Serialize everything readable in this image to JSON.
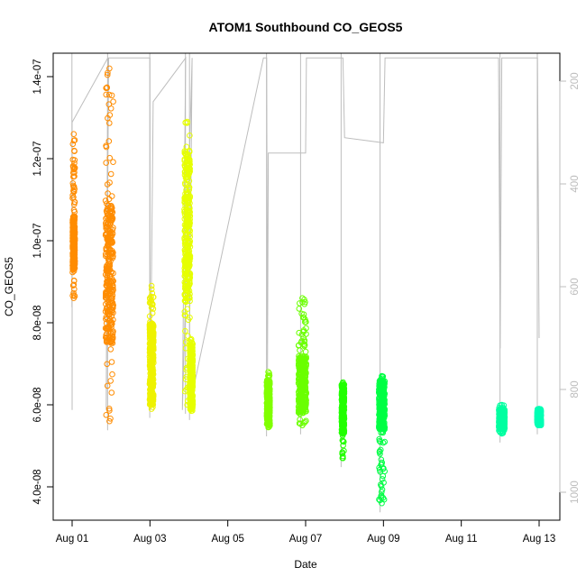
{
  "chart_data": {
    "type": "scatter",
    "title": "ATOM1 Southbound CO_GEOS5",
    "xlabel": "Date",
    "ylabel": "CO_GEOS5",
    "xlim": [
      "2016-08-01",
      "2016-08-13"
    ],
    "ylim": [
      3.3e-08,
      1.46e-07
    ],
    "x_ticks": [
      {
        "value": "2016-08-01",
        "label": "Aug 01"
      },
      {
        "value": "2016-08-03",
        "label": "Aug 03"
      },
      {
        "value": "2016-08-05",
        "label": "Aug 05"
      },
      {
        "value": "2016-08-07",
        "label": "Aug 07"
      },
      {
        "value": "2016-08-09",
        "label": "Aug 09"
      },
      {
        "value": "2016-08-11",
        "label": "Aug 11"
      },
      {
        "value": "2016-08-13",
        "label": "Aug 13"
      }
    ],
    "y_ticks": [
      {
        "value": 4e-08,
        "label": "4.0e-08"
      },
      {
        "value": 6e-08,
        "label": "6.0e-08"
      },
      {
        "value": 8e-08,
        "label": "8.0e-08"
      },
      {
        "value": 1e-07,
        "label": "1.0e-07"
      },
      {
        "value": 1.2e-07,
        "label": "1.2e-07"
      },
      {
        "value": 1.4e-07,
        "label": "1.4e-07"
      }
    ],
    "right_axis": {
      "color": "#bdbdbd",
      "inverted": true,
      "lim": [
        1050,
        155
      ],
      "ticks": [
        {
          "value": 200,
          "label": "200"
        },
        {
          "value": 400,
          "label": "400"
        },
        {
          "value": 600,
          "label": "600"
        },
        {
          "value": 800,
          "label": "800"
        },
        {
          "value": 1000,
          "label": "1000"
        }
      ]
    },
    "clusters": [
      {
        "x": "2016-08-01 01:00",
        "ymin": 8.6e-08,
        "ymax": 1.26e-07,
        "dense_min": 9.3e-08,
        "dense_max": 1.06e-07,
        "color": "#ff8c00",
        "spread_h": 0.06
      },
      {
        "x": "2016-08-01 23:00",
        "ymin": 5.6e-08,
        "ymax": 1.42e-07,
        "dense_min": 7.5e-08,
        "dense_max": 1.09e-07,
        "color": "#ff8c00",
        "spread_h": 0.2
      },
      {
        "x": "2016-08-03 01:00",
        "ymin": 5.9e-08,
        "ymax": 8.9e-08,
        "dense_min": 6e-08,
        "dense_max": 8e-08,
        "color": "#eef200",
        "spread_h": 0.1
      },
      {
        "x": "2016-08-03 23:00",
        "ymin": 6e-08,
        "ymax": 1.29e-07,
        "dense_min": 8.5e-08,
        "dense_max": 1.22e-07,
        "color": "#e6ff00",
        "spread_h": 0.15
      },
      {
        "x": "2016-08-04 01:30",
        "ymin": 5.85e-08,
        "ymax": 7.6e-08,
        "dense_min": 5.9e-08,
        "dense_max": 7.5e-08,
        "color": "#e6ff00",
        "spread_h": 0.08
      },
      {
        "x": "2016-08-06 01:00",
        "ymin": 5.45e-08,
        "ymax": 6.8e-08,
        "dense_min": 5.5e-08,
        "dense_max": 6.6e-08,
        "color": "#80ff00",
        "spread_h": 0.08
      },
      {
        "x": "2016-08-06 22:00",
        "ymin": 5.5e-08,
        "ymax": 8.6e-08,
        "dense_min": 5.8e-08,
        "dense_max": 7.2e-08,
        "color": "#6aff00",
        "spread_h": 0.2
      },
      {
        "x": "2016-08-07 23:00",
        "ymin": 4.7e-08,
        "ymax": 6.55e-08,
        "dense_min": 5.3e-08,
        "dense_max": 6.5e-08,
        "color": "#22ff00",
        "spread_h": 0.07
      },
      {
        "x": "2016-08-08 23:00",
        "ymin": 3.6e-08,
        "ymax": 6.7e-08,
        "dense_min": 5.4e-08,
        "dense_max": 6.6e-08,
        "color": "#00ff44",
        "spread_h": 0.15
      },
      {
        "x": "2016-08-12 01:00",
        "ymin": 5.3e-08,
        "ymax": 6e-08,
        "dense_min": 5.4e-08,
        "dense_max": 5.9e-08,
        "color": "#00ffa0",
        "spread_h": 0.15
      },
      {
        "x": "2016-08-13 00:00",
        "ymin": 5.5e-08,
        "ymax": 5.9e-08,
        "dense_min": 5.5e-08,
        "dense_max": 5.9e-08,
        "color": "#00ffb4",
        "spread_h": 0.1
      }
    ],
    "altitude_trace": {
      "color": "#bdbdbd",
      "axis": "right",
      "points": [
        [
          "2016-08-01 00:00",
          840
        ],
        [
          "2016-08-01 00:01",
          280
        ],
        [
          "2016-08-01 22:00",
          155
        ],
        [
          "2016-08-01 21:00",
          840
        ],
        [
          "2016-08-01 22:30",
          155
        ],
        [
          "2016-08-02 02:00",
          155
        ],
        [
          "2016-08-02 22:00",
          155
        ],
        [
          "2016-08-03 00:00",
          155
        ],
        [
          "2016-08-03 00:10",
          840
        ],
        [
          "2016-08-03 02:00",
          240
        ],
        [
          "2016-08-03 22:00",
          155
        ],
        [
          "2016-08-03 20:00",
          840
        ],
        [
          "2016-08-04 02:00",
          155
        ],
        [
          "2016-08-04 00:00",
          840
        ],
        [
          "2016-08-05 22:00",
          155
        ],
        [
          "2016-08-06 00:00",
          155
        ],
        [
          "2016-08-06 00:30",
          760
        ],
        [
          "2016-08-06 01:00",
          340
        ],
        [
          "2016-08-07 00:00",
          340
        ],
        [
          "2016-08-07 00:30",
          155
        ],
        [
          "2016-08-07 23:00",
          155
        ],
        [
          "2016-08-08 00:00",
          310
        ],
        [
          "2016-08-09 00:00",
          320
        ],
        [
          "2016-08-09 01:00",
          155
        ],
        [
          "2016-08-11 23:00",
          155
        ],
        [
          "2016-08-12 00:00",
          720
        ],
        [
          "2016-08-12 01:00",
          155
        ],
        [
          "2016-08-12 23:00",
          155
        ],
        [
          "2016-08-13 00:00",
          700
        ]
      ]
    }
  }
}
